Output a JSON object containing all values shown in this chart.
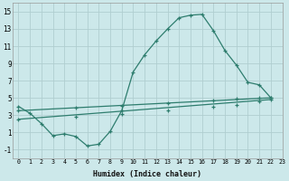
{
  "line1_x": [
    0,
    1,
    2,
    3,
    4,
    5,
    6,
    7,
    8,
    9,
    10,
    11,
    12,
    13,
    14,
    15,
    16,
    17,
    18,
    19,
    20,
    21,
    22
  ],
  "line1_y": [
    4.0,
    3.2,
    2.0,
    0.6,
    0.8,
    0.5,
    -0.6,
    -0.4,
    1.1,
    3.5,
    8.0,
    10.0,
    11.6,
    13.0,
    14.3,
    14.6,
    14.7,
    12.8,
    10.5,
    8.8,
    6.8,
    6.5,
    5.0
  ],
  "line2_x": [
    0,
    22
  ],
  "line2_y": [
    3.5,
    5.0
  ],
  "line3_x": [
    0,
    22
  ],
  "line3_y": [
    2.5,
    4.8
  ],
  "line_color": "#2e7d6e",
  "bg_color": "#cce8ea",
  "grid_color": "#b0ced0",
  "xlabel": "Humidex (Indice chaleur)",
  "xlim": [
    -0.5,
    23
  ],
  "ylim": [
    -2,
    16
  ],
  "xticks": [
    0,
    1,
    2,
    3,
    4,
    5,
    6,
    7,
    8,
    9,
    10,
    11,
    12,
    13,
    14,
    15,
    16,
    17,
    18,
    19,
    20,
    21,
    22,
    23
  ],
  "yticks": [
    -1,
    1,
    3,
    5,
    7,
    9,
    11,
    13,
    15
  ],
  "marker_x1": [
    0,
    1,
    2,
    3,
    4,
    5,
    6,
    7,
    8,
    9,
    10,
    11,
    12,
    13,
    14,
    15,
    16,
    17,
    18,
    19,
    20,
    21,
    22
  ],
  "marker_y1": [
    4.0,
    3.2,
    2.0,
    0.6,
    0.8,
    0.5,
    -0.6,
    -0.4,
    1.1,
    3.5,
    8.0,
    10.0,
    11.6,
    13.0,
    14.3,
    14.6,
    14.7,
    12.8,
    10.5,
    8.8,
    6.8,
    6.5,
    5.0
  ],
  "marker_x2": [
    0,
    5,
    9,
    13,
    17,
    19,
    21,
    22
  ],
  "marker_y2": [
    3.5,
    3.8,
    4.1,
    4.4,
    4.7,
    4.85,
    4.97,
    5.0
  ],
  "marker_x3": [
    0,
    5,
    9,
    13,
    17,
    19,
    21,
    22
  ],
  "marker_y3": [
    2.5,
    2.8,
    3.1,
    3.5,
    3.9,
    4.2,
    4.6,
    4.8
  ]
}
